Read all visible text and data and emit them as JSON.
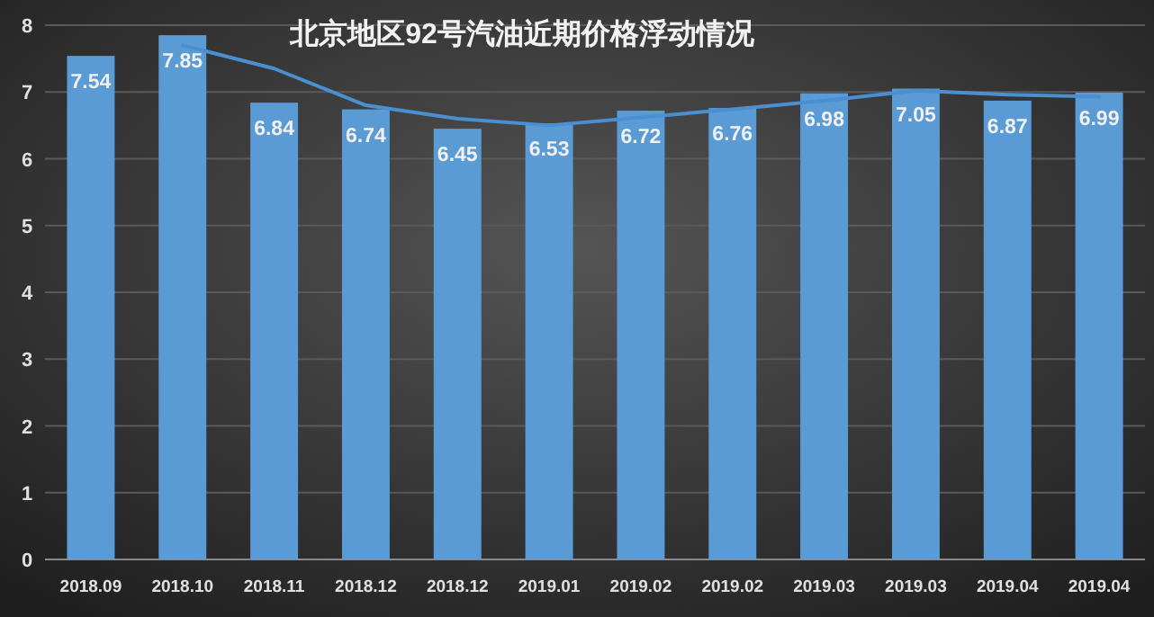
{
  "chart_data": {
    "type": "bar",
    "title": "北京地区92号汽油近期价格浮动情况",
    "categories": [
      "2018.09",
      "2018.10",
      "2018.11",
      "2018.12",
      "2018.12",
      "2019.01",
      "2019.02",
      "2019.02",
      "2019.03",
      "2019.03",
      "2019.04",
      "2019.04"
    ],
    "series": [
      {
        "color": "#5b9bd5",
        "values": [
          7.54,
          7.85,
          6.84,
          6.74,
          6.45,
          6.53,
          6.72,
          6.76,
          6.98,
          7.05,
          6.87,
          6.99
        ],
        "value_labels": [
          "7.54",
          "7.85",
          "6.84",
          "6.74",
          "6.45",
          "6.53",
          "6.72",
          "6.76",
          "6.98",
          "7.05",
          "6.87",
          "6.99"
        ]
      },
      {
        "type": "line",
        "color": "#4a8fd0",
        "values": [
          null,
          7.7,
          7.35,
          6.8,
          6.6,
          6.5,
          6.62,
          6.74,
          6.87,
          7.02,
          6.96,
          6.93
        ]
      }
    ],
    "ylim": [
      0,
      8
    ],
    "yticks": [
      0,
      1,
      2,
      3,
      4,
      5,
      6,
      7,
      8
    ],
    "grid": "y"
  }
}
